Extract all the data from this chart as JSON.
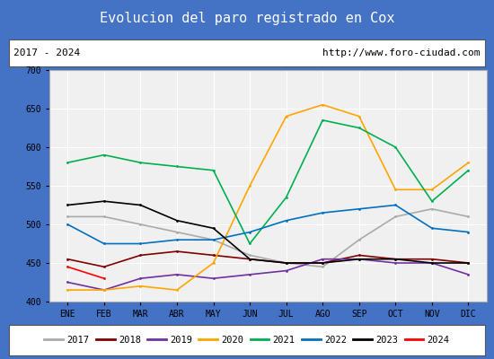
{
  "title": "Evolucion del paro registrado en Cox",
  "subtitle_left": "2017 - 2024",
  "subtitle_right": "http://www.foro-ciudad.com",
  "months": [
    "ENE",
    "FEB",
    "MAR",
    "ABR",
    "MAY",
    "JUN",
    "JUL",
    "AGO",
    "SEP",
    "OCT",
    "NOV",
    "DIC"
  ],
  "ylim": [
    400,
    700
  ],
  "yticks": [
    400,
    450,
    500,
    550,
    600,
    650,
    700
  ],
  "series": {
    "2017": {
      "color": "#aaaaaa",
      "values": [
        510,
        510,
        500,
        490,
        480,
        460,
        450,
        445,
        480,
        510,
        520,
        510
      ]
    },
    "2018": {
      "color": "#800000",
      "values": [
        455,
        445,
        460,
        465,
        460,
        455,
        450,
        450,
        460,
        455,
        455,
        450
      ]
    },
    "2019": {
      "color": "#7030a0",
      "values": [
        425,
        415,
        430,
        435,
        430,
        435,
        440,
        455,
        455,
        450,
        450,
        435
      ]
    },
    "2020": {
      "color": "#ffa500",
      "values": [
        415,
        415,
        420,
        415,
        450,
        550,
        640,
        655,
        640,
        545,
        545,
        580
      ]
    },
    "2021": {
      "color": "#00b050",
      "values": [
        580,
        590,
        580,
        575,
        570,
        475,
        535,
        635,
        625,
        600,
        530,
        570
      ]
    },
    "2022": {
      "color": "#0070c0",
      "values": [
        500,
        475,
        475,
        480,
        480,
        490,
        505,
        515,
        520,
        525,
        495,
        490
      ]
    },
    "2023": {
      "color": "#000000",
      "values": [
        525,
        530,
        525,
        505,
        495,
        455,
        450,
        450,
        455,
        455,
        450,
        450
      ]
    },
    "2024": {
      "color": "#ff0000",
      "values": [
        445,
        430,
        null,
        null,
        null,
        null,
        null,
        null,
        null,
        null,
        null,
        null
      ]
    }
  },
  "border_color": "#4472c4",
  "plot_bgcolor": "#f0f0f0",
  "title_fontsize": 11,
  "tick_fontsize": 7,
  "legend_fontsize": 7.5
}
